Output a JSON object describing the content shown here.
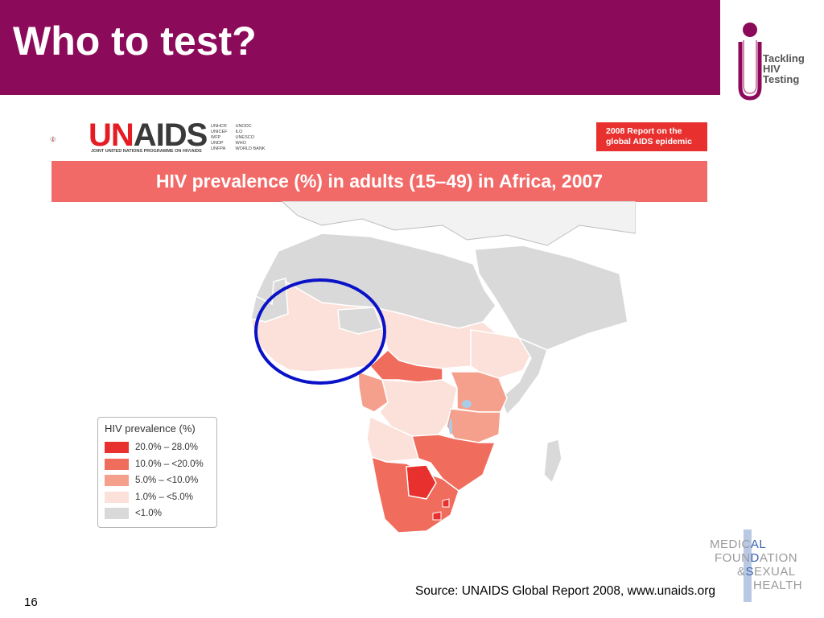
{
  "slide": {
    "title": "Who to test?",
    "page_number": "16",
    "header_color": "#8c0a5a"
  },
  "branding": {
    "tackling_logo": {
      "lines": [
        "Tackling",
        "HIV",
        "Testing"
      ],
      "color": "#8c0a5a"
    },
    "unaids_logo": {
      "wordmark_un": "UN",
      "wordmark_aids": "AIDS",
      "subtitle": "JOINT UNITED NATIONS PROGRAMME ON HIV/AIDS",
      "agencies_col1": [
        "UNHCR",
        "UNICEF",
        "WFP",
        "UNDP",
        "UNFPA"
      ],
      "agencies_col2": [
        "UNODC",
        "ILO",
        "UNESCO",
        "WHO",
        "WORLD BANK"
      ]
    },
    "medical_foundation": {
      "line1_a": "MEDIC",
      "line1_b": "AL",
      "line2_a": "FOUN",
      "line2_b": "D",
      "line2_c": "ATION",
      "line3_a": "&",
      "line3_b": "S",
      "line3_c": "EXUAL",
      "line4": "HEALTH",
      "accent": "#3a64b0"
    }
  },
  "report_badge": {
    "line1": "2008 Report on the",
    "line2": "global AIDS epidemic"
  },
  "map": {
    "title": "HIV prevalence (%) in adults (15–49) in Africa, 2007",
    "highlight": {
      "shape": "ellipse",
      "color": "#0a12c8",
      "region": "West Africa"
    }
  },
  "legend": {
    "title": "HIV prevalence (%)",
    "items": [
      {
        "label": "20.0% – 28.0%",
        "color": "#e8312f"
      },
      {
        "label": "10.0% – <20.0%",
        "color": "#f06c5c"
      },
      {
        "label": "5.0% – <10.0%",
        "color": "#f5a08c"
      },
      {
        "label": "1.0% – <5.0%",
        "color": "#fbe1d9"
      },
      {
        "label": "<1.0%",
        "color": "#d9d9d9"
      }
    ]
  },
  "source": "Source: UNAIDS Global Report 2008, www.unaids.org"
}
